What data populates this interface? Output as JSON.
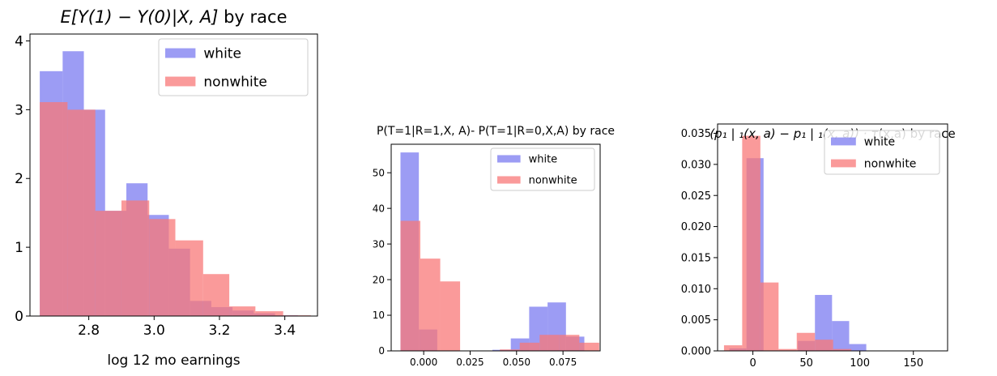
{
  "chart_data": [
    {
      "type": "bar",
      "title": "E[Y(1) − Y(0)|X, A] by race",
      "title_italic_part": "E[Y(1) − Y(0)|X, A]",
      "title_plain_part": " by race",
      "xlabel": "log 12 mo earnings",
      "ylabel": "",
      "xlim": [
        2.62,
        3.5
      ],
      "ylim": [
        0,
        4.1
      ],
      "xticks": [
        2.8,
        3.0,
        3.2,
        3.4
      ],
      "xtick_labels": [
        "2.8",
        "3.0",
        "3.2",
        "3.4"
      ],
      "yticks": [
        0,
        1,
        2,
        3,
        4
      ],
      "ytick_labels": [
        "0",
        "1",
        "2",
        "3",
        "4"
      ],
      "legend_position": "top-right",
      "series": [
        {
          "name": "white",
          "color": "#7b7bf0",
          "bins": [
            [
              2.65,
              2.72,
              3.56
            ],
            [
              2.72,
              2.785,
              3.85
            ],
            [
              2.785,
              2.85,
              3.0
            ],
            [
              2.85,
              2.915,
              1.53
            ],
            [
              2.915,
              2.98,
              1.93
            ],
            [
              2.98,
              3.045,
              1.47
            ],
            [
              3.045,
              3.11,
              0.98
            ],
            [
              3.11,
              3.175,
              0.22
            ],
            [
              3.175,
              3.24,
              0.13
            ],
            [
              3.24,
              3.305,
              0.08
            ],
            [
              3.305,
              3.37,
              0.04
            ],
            [
              3.37,
              3.44,
              0.01
            ]
          ]
        },
        {
          "name": "nonwhite",
          "color": "#f87878",
          "bins": [
            [
              2.65,
              2.735,
              3.11
            ],
            [
              2.735,
              2.82,
              3.0
            ],
            [
              2.82,
              2.9,
              1.53
            ],
            [
              2.9,
              2.985,
              1.68
            ],
            [
              2.985,
              3.065,
              1.41
            ],
            [
              3.065,
              3.15,
              1.1
            ],
            [
              3.15,
              3.23,
              0.61
            ],
            [
              3.23,
              3.31,
              0.14
            ],
            [
              3.31,
              3.395,
              0.07
            ],
            [
              3.395,
              3.48,
              0.01
            ]
          ]
        }
      ]
    },
    {
      "type": "bar",
      "title": "P(T=1|R=1,X, A)- P(T=1|R=0,X,A) by race",
      "xlabel": "",
      "ylabel": "",
      "xlim": [
        -0.0175,
        0.095
      ],
      "ylim": [
        0,
        58
      ],
      "xticks": [
        0.0,
        0.025,
        0.05,
        0.075
      ],
      "xtick_labels": [
        "0.000",
        "0.025",
        "0.050",
        "0.075"
      ],
      "yticks": [
        0,
        10,
        20,
        30,
        40,
        50
      ],
      "ytick_labels": [
        "0",
        "10",
        "20",
        "30",
        "40",
        "50"
      ],
      "legend_position": "top-right",
      "series": [
        {
          "name": "white",
          "color": "#7b7bf0",
          "bins": [
            [
              -0.0125,
              -0.0026,
              55.7
            ],
            [
              -0.0026,
              0.0073,
              6.0
            ],
            [
              0.0073,
              0.0172,
              0.0
            ],
            [
              0.0172,
              0.0271,
              0.0
            ],
            [
              0.0271,
              0.037,
              0.0
            ],
            [
              0.037,
              0.0469,
              0.3
            ],
            [
              0.0469,
              0.0568,
              3.5
            ],
            [
              0.0568,
              0.0667,
              12.4
            ],
            [
              0.0667,
              0.0766,
              13.6
            ],
            [
              0.0766,
              0.0865,
              4.0
            ]
          ]
        },
        {
          "name": "nonwhite",
          "color": "#f87878",
          "bins": [
            [
              -0.0125,
              -0.0018,
              36.5
            ],
            [
              -0.0018,
              0.0089,
              25.9
            ],
            [
              0.0089,
              0.0196,
              19.5
            ],
            [
              0.0196,
              0.0303,
              0.0
            ],
            [
              0.0303,
              0.041,
              0.0
            ],
            [
              0.041,
              0.0517,
              0.4
            ],
            [
              0.0517,
              0.0624,
              2.3
            ],
            [
              0.0624,
              0.0731,
              4.5
            ],
            [
              0.0731,
              0.0838,
              4.5
            ],
            [
              0.0838,
              0.0945,
              2.3
            ]
          ]
        }
      ]
    },
    {
      "type": "bar",
      "title": "(p₁ | ₁(x, a) − p₁ | ₁(x, a)) · τ(x,a) by race",
      "title_math_part": "(p₁ | ₁(x, a) − p₁ | ₁(x, a)) · τ",
      "title_plain_part": "(x,a) by race",
      "xlabel": "",
      "ylabel": "",
      "xlim": [
        -33,
        182
      ],
      "ylim": [
        0,
        0.0365
      ],
      "xticks": [
        0,
        50,
        100,
        150
      ],
      "xtick_labels": [
        "0",
        "50",
        "100",
        "150"
      ],
      "yticks": [
        0,
        0.005,
        0.01,
        0.015,
        0.02,
        0.025,
        0.03,
        0.035
      ],
      "ytick_labels": [
        "0.000",
        "0.005",
        "0.010",
        "0.015",
        "0.020",
        "0.025",
        "0.030",
        "0.035"
      ],
      "legend_position": "top-right",
      "series": [
        {
          "name": "white",
          "color": "#7b7bf0",
          "bins": [
            [
              -22,
              -6,
              0.0004
            ],
            [
              -6,
              10,
              0.031
            ],
            [
              10,
              26,
              0.0
            ],
            [
              26,
              42,
              0.0
            ],
            [
              42,
              58,
              0.0016
            ],
            [
              58,
              74,
              0.009
            ],
            [
              74,
              90,
              0.0048
            ],
            [
              90,
              106,
              0.0011
            ]
          ]
        },
        {
          "name": "nonwhite",
          "color": "#f87878",
          "bins": [
            [
              -27,
              -10,
              0.0009
            ],
            [
              -10,
              7,
              0.0346
            ],
            [
              7,
              24,
              0.011
            ],
            [
              24,
              41,
              0.0003
            ],
            [
              41,
              58,
              0.0029
            ],
            [
              58,
              75,
              0.0018
            ],
            [
              75,
              92,
              0.0003
            ]
          ]
        }
      ]
    }
  ]
}
